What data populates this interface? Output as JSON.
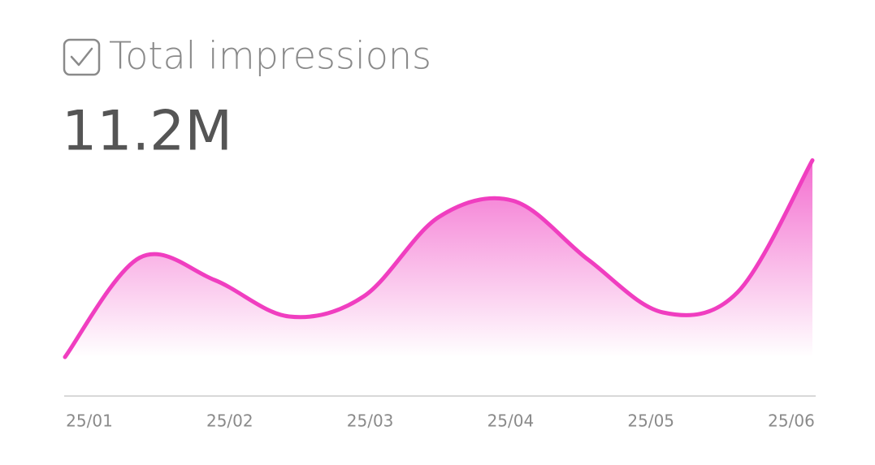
{
  "chart_data": {
    "type": "area",
    "title": "Total impressions",
    "headline": "11.2M",
    "categories": [
      "25/01",
      null,
      "25/02",
      null,
      "25/03",
      null,
      "25/04",
      null,
      "25/05",
      null,
      "25/06"
    ],
    "values": [
      0,
      49,
      38,
      20,
      30,
      69,
      77,
      48,
      22,
      32,
      97
    ],
    "ylim": [
      0,
      100
    ],
    "color": "#f03ec0"
  }
}
